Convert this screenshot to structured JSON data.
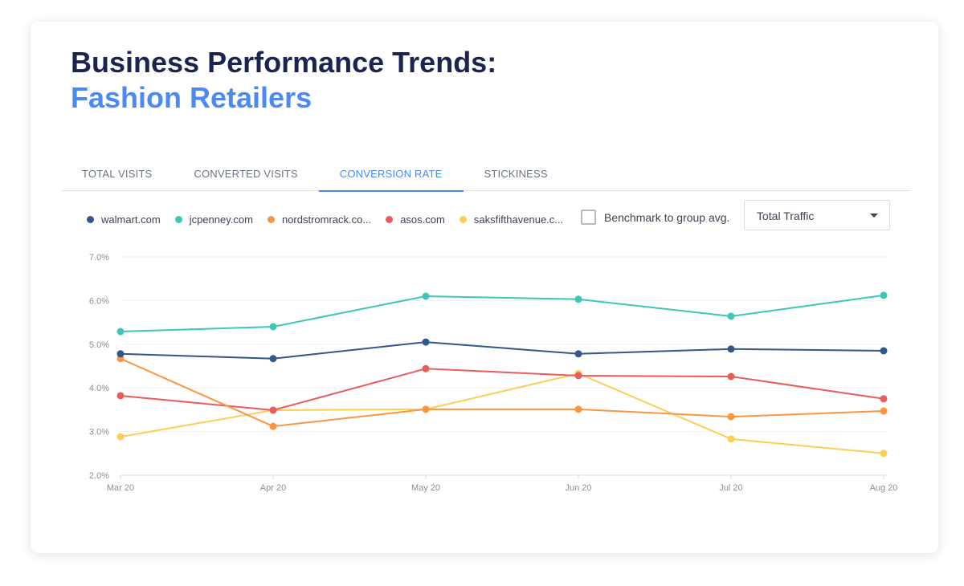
{
  "header": {
    "title": "Business Performance Trends:",
    "subtitle": "Fashion Retailers"
  },
  "tabs": [
    {
      "label": "TOTAL VISITS"
    },
    {
      "label": "CONVERTED VISITS"
    },
    {
      "label": "CONVERSION RATE",
      "active": true
    },
    {
      "label": "STICKINESS"
    }
  ],
  "controls": {
    "benchmark_label": "Benchmark to group avg.",
    "benchmark_checked": false,
    "traffic_select": "Total Traffic"
  },
  "chart_data": {
    "type": "line",
    "categories": [
      "Mar 20",
      "Apr 20",
      "May 20",
      "Jun 20",
      "Jul 20",
      "Aug 20"
    ],
    "y_ticks": [
      "2.0%",
      "3.0%",
      "4.0%",
      "5.0%",
      "6.0%",
      "7.0%"
    ],
    "ylim": [
      2,
      7
    ],
    "grid": true,
    "legend_placement": "top-left",
    "series": [
      {
        "name": "walmart.com",
        "color": "#34578a",
        "values": [
          4.78,
          4.67,
          5.05,
          4.78,
          4.89,
          4.85
        ]
      },
      {
        "name": "jcpenney.com",
        "color": "#3ec6b6",
        "values": [
          5.29,
          5.4,
          6.1,
          6.03,
          5.64,
          6.12
        ]
      },
      {
        "name": "nordstromrack.co...",
        "color": "#fb9540",
        "values": [
          4.67,
          3.12,
          3.51,
          3.51,
          3.34,
          3.47
        ]
      },
      {
        "name": "asos.com",
        "color": "#e85c5c",
        "values": [
          3.82,
          3.49,
          4.44,
          4.28,
          4.26,
          3.75
        ]
      },
      {
        "name": "saksfifthavenue.c...",
        "color": "#fcce57",
        "values": [
          2.88,
          3.49,
          3.51,
          4.33,
          2.83,
          2.5
        ]
      }
    ]
  }
}
